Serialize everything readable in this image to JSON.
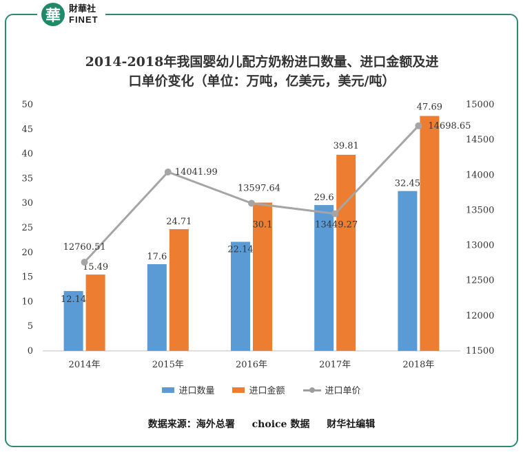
{
  "brand": {
    "badge_char": "華",
    "name_cn": "財華社",
    "name_en": "FINET"
  },
  "title_lines": [
    "2014-2018年我国婴幼儿配方奶粉进口数量、进口金额及进",
    "口单价变化（单位：万吨，亿美元，美元/吨）"
  ],
  "colors": {
    "quantity": "#5b9bd5",
    "amount": "#ed7d31",
    "price": "#a5a5a5",
    "frame": "#2a8a6e"
  },
  "chart_data": {
    "type": "bar",
    "categories": [
      "2014年",
      "2015年",
      "2016年",
      "2017年",
      "2018年"
    ],
    "series": [
      {
        "name": "进口数量",
        "type": "bar",
        "axis": "left",
        "values": [
          12.14,
          17.6,
          22.14,
          29.6,
          32.45
        ],
        "labels": [
          "12.14",
          "17.6",
          "22.14",
          "29.6",
          "32.45"
        ]
      },
      {
        "name": "进口金额",
        "type": "bar",
        "axis": "left",
        "values": [
          15.49,
          24.71,
          30.1,
          39.81,
          47.69
        ],
        "labels": [
          "15.49",
          "24.71",
          "30.1",
          "39.81",
          "47.69"
        ]
      },
      {
        "name": "进口单价",
        "type": "line",
        "axis": "right",
        "values": [
          12760.51,
          14041.99,
          13597.64,
          13449.27,
          14698.65
        ],
        "labels": [
          "12760.51",
          "14041.99",
          "13597.64",
          "13449.27",
          "14698.65"
        ]
      }
    ],
    "y_left": {
      "min": 0,
      "max": 50,
      "ticks": [
        "0",
        "5",
        "10",
        "15",
        "20",
        "25",
        "30",
        "35",
        "40",
        "45",
        "50"
      ]
    },
    "y_right": {
      "min": 11500,
      "max": 15000,
      "ticks": [
        "11500",
        "12000",
        "12500",
        "13000",
        "13500",
        "14000",
        "14500",
        "15000"
      ]
    },
    "grid": false,
    "legend_position": "bottom"
  },
  "source": {
    "label": "数据来源：海外总署",
    "parts": [
      "choice 数据",
      "财华社编辑"
    ]
  }
}
